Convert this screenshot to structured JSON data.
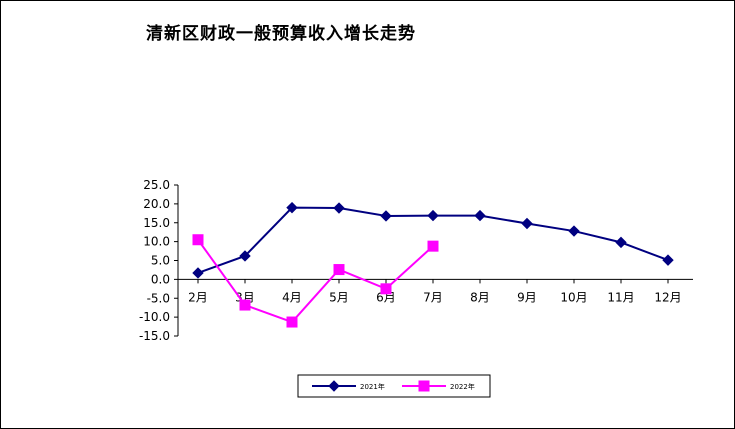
{
  "chart_data": {
    "type": "line",
    "title": "清新区财政一般预算收入增长走势",
    "xlabel": "",
    "ylabel": "",
    "categories": [
      "2月",
      "3月",
      "4月",
      "5月",
      "6月",
      "7月",
      "8月",
      "9月",
      "10月",
      "11月",
      "12月"
    ],
    "y_tick_labels": [
      "25.0",
      "20.0",
      "15.0",
      "10.0",
      "5.0",
      "0.0",
      "-5.0",
      "-10.0",
      "-15.0"
    ],
    "ylim": [
      -15,
      25
    ],
    "y_step": 5,
    "grid": false,
    "legend_position": "bottom",
    "series": [
      {
        "name": "2021年",
        "color": "#000080",
        "marker": "diamond",
        "values": [
          1.7,
          6.2,
          19.0,
          18.9,
          16.8,
          16.9,
          16.9,
          14.8,
          12.8,
          9.8,
          5.1
        ]
      },
      {
        "name": "2022年",
        "color": "#ff00ff",
        "marker": "square",
        "values": [
          10.5,
          -6.8,
          -11.3,
          2.6,
          -2.5,
          8.8,
          null,
          null,
          null,
          null,
          null
        ]
      }
    ]
  }
}
